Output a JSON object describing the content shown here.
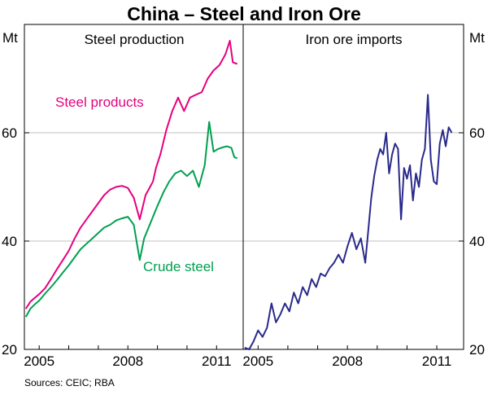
{
  "chart_data": {
    "type": "line",
    "title": "China – Steel and Iron Ore",
    "unit_left": "Mt",
    "unit_right": "Mt",
    "ylim": [
      20,
      80
    ],
    "yticks": [
      20,
      40,
      60
    ],
    "xlim": [
      2004.5,
      2011.9
    ],
    "xticks": [
      2005,
      2008,
      2011
    ],
    "source": "Sources: CEIC; RBA",
    "panels": [
      {
        "title": "Steel production",
        "series": [
          {
            "name": "Steel products",
            "color": "#e6007e",
            "x": [
              2004.55,
              2004.7,
              2004.85,
              2005.0,
              2005.2,
              2005.4,
              2005.6,
              2005.8,
              2006.0,
              2006.2,
              2006.4,
              2006.6,
              2006.8,
              2007.0,
              2007.2,
              2007.4,
              2007.6,
              2007.8,
              2008.0,
              2008.2,
              2008.4,
              2008.6,
              2008.75,
              2008.85,
              2008.95,
              2009.1,
              2009.3,
              2009.5,
              2009.7,
              2009.9,
              2010.1,
              2010.3,
              2010.5,
              2010.7,
              2010.9,
              2011.1,
              2011.3,
              2011.45,
              2011.55,
              2011.7
            ],
            "values": [
              27.5,
              28.8,
              29.5,
              30.2,
              31.3,
              33.0,
              34.8,
              36.5,
              38.2,
              40.5,
              42.5,
              44.0,
              45.5,
              47.0,
              48.5,
              49.5,
              50.0,
              50.2,
              49.8,
              48.0,
              44.0,
              48.5,
              50.0,
              51.0,
              53.5,
              56.0,
              60.5,
              64.0,
              66.5,
              64.0,
              66.5,
              67.0,
              67.5,
              70.0,
              71.5,
              72.5,
              74.5,
              77.0,
              73.0,
              72.7
            ]
          },
          {
            "name": "Crude steel",
            "color": "#00a050",
            "x": [
              2004.55,
              2004.7,
              2004.85,
              2005.0,
              2005.2,
              2005.4,
              2005.6,
              2005.8,
              2006.0,
              2006.2,
              2006.4,
              2006.6,
              2006.8,
              2007.0,
              2007.2,
              2007.4,
              2007.6,
              2007.8,
              2008.0,
              2008.2,
              2008.4,
              2008.55,
              2008.7,
              2008.85,
              2009.0,
              2009.2,
              2009.4,
              2009.6,
              2009.8,
              2010.0,
              2010.2,
              2010.4,
              2010.6,
              2010.75,
              2010.9,
              2011.05,
              2011.2,
              2011.35,
              2011.5,
              2011.6,
              2011.7
            ],
            "values": [
              26.0,
              27.5,
              28.3,
              29.0,
              30.3,
              31.5,
              32.8,
              34.2,
              35.5,
              37.0,
              38.5,
              39.5,
              40.5,
              41.5,
              42.5,
              43.0,
              43.8,
              44.2,
              44.5,
              43.0,
              36.5,
              40.5,
              42.5,
              44.5,
              46.5,
              49.0,
              51.0,
              52.5,
              53.0,
              52.0,
              53.0,
              50.0,
              54.0,
              62.0,
              56.5,
              57.0,
              57.3,
              57.5,
              57.2,
              55.5,
              55.3
            ]
          }
        ]
      },
      {
        "title": "Iron ore imports",
        "series": [
          {
            "name": "Iron ore imports",
            "color": "#2a2a8c",
            "x": [
              2004.55,
              2004.7,
              2004.85,
              2005.0,
              2005.15,
              2005.3,
              2005.45,
              2005.6,
              2005.75,
              2005.9,
              2006.05,
              2006.2,
              2006.35,
              2006.5,
              2006.65,
              2006.8,
              2006.95,
              2007.1,
              2007.25,
              2007.4,
              2007.55,
              2007.7,
              2007.85,
              2008.0,
              2008.15,
              2008.3,
              2008.45,
              2008.6,
              2008.7,
              2008.8,
              2008.9,
              2009.0,
              2009.1,
              2009.2,
              2009.3,
              2009.4,
              2009.5,
              2009.6,
              2009.7,
              2009.8,
              2009.9,
              2010.0,
              2010.1,
              2010.2,
              2010.3,
              2010.4,
              2010.5,
              2010.6,
              2010.7,
              2010.8,
              2010.9,
              2011.0,
              2011.1,
              2011.2,
              2011.3,
              2011.4,
              2011.5
            ],
            "values": [
              20.3,
              20.0,
              21.5,
              23.5,
              22.3,
              24.0,
              28.5,
              25.0,
              26.5,
              28.5,
              27.0,
              30.5,
              28.5,
              31.5,
              30.0,
              33.0,
              31.5,
              34.0,
              33.5,
              35.0,
              36.0,
              37.5,
              36.0,
              39.0,
              41.5,
              38.5,
              40.5,
              36.0,
              42.0,
              48.0,
              52.0,
              55.0,
              57.0,
              56.0,
              60.0,
              52.5,
              56.0,
              58.0,
              57.0,
              44.0,
              53.5,
              51.5,
              54.0,
              47.5,
              52.5,
              50.0,
              55.0,
              57.0,
              67.0,
              55.0,
              51.0,
              50.5,
              58.0,
              60.5,
              57.5,
              61.0,
              60.0
            ]
          }
        ]
      }
    ]
  }
}
